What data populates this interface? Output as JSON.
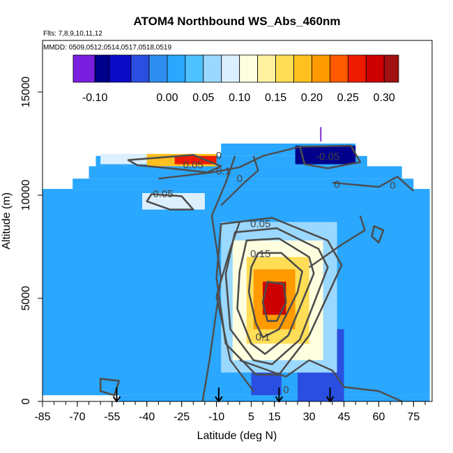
{
  "chart_data": {
    "type": "heatmap",
    "title": "ATOM4 Northbound WS_Abs_460nm",
    "subtitle_flights": "Flts: 7,8,9,10,11,12",
    "subtitle_dates": "MMDD: 0509,0512,0514,0517,0518,0519",
    "xlabel": "Latitude (deg N)",
    "ylabel": "Altitude (m)",
    "xlim": [
      -85,
      83
    ],
    "ylim": [
      0,
      17500
    ],
    "x_ticks": [
      -85,
      -70,
      -55,
      -40,
      -25,
      -10,
      5,
      15,
      30,
      45,
      60,
      75
    ],
    "x_tick_labels": [
      "-85",
      "-70",
      "-55",
      "-40",
      "-25",
      "-10",
      "5",
      "15",
      "30",
      "45",
      "60",
      "75"
    ],
    "x_minor_step": 5,
    "y_ticks": [
      0,
      5000,
      10000,
      15000
    ],
    "y_tick_labels": [
      "0",
      "5000",
      "10000",
      "15000"
    ],
    "colorbar": {
      "min": -0.13,
      "max": 0.32,
      "ticks": [
        -0.1,
        0.0,
        0.05,
        0.1,
        0.15,
        0.2,
        0.25,
        0.3
      ],
      "tick_labels": [
        "-0.10",
        "0.00",
        "0.05",
        "0.10",
        "0.15",
        "0.20",
        "0.25",
        "0.30"
      ],
      "boundaries": [
        -0.13,
        -0.1,
        -0.08,
        -0.05,
        -0.025,
        0.0,
        0.025,
        0.05,
        0.075,
        0.1,
        0.125,
        0.15,
        0.175,
        0.2,
        0.225,
        0.25,
        0.275,
        0.3,
        0.32
      ],
      "colors": [
        "#7a1fe0",
        "#00008a",
        "#0b0bc8",
        "#2a4fe0",
        "#2f8ef0",
        "#2aa7ff",
        "#4ec2ff",
        "#9bd8ff",
        "#dcefff",
        "#ffffe0",
        "#fff1a0",
        "#ffdd55",
        "#ffc020",
        "#ff9a00",
        "#ff5a00",
        "#ee1a00",
        "#cc0000",
        "#a01010"
      ]
    },
    "contour_labels": [
      {
        "text": "0.05",
        "lat": -20,
        "alt": 11300
      },
      {
        "text": "0.1",
        "lat": -7,
        "alt": 11000
      },
      {
        "text": "0",
        "lat": -9,
        "alt": 11750
      },
      {
        "text": "0",
        "lat": 0,
        "alt": 10650
      },
      {
        "text": "-0.05",
        "lat": 38,
        "alt": 11700
      },
      {
        "text": "0",
        "lat": 42,
        "alt": 10350
      },
      {
        "text": "0",
        "lat": 66,
        "alt": 10300
      },
      {
        "text": "0.05",
        "lat": -33,
        "alt": 9900
      },
      {
        "text": "0.05",
        "lat": 9,
        "alt": 8450
      },
      {
        "text": "0.15",
        "lat": 9,
        "alt": 7000
      },
      {
        "text": "0.1",
        "lat": 10,
        "alt": 2950
      },
      {
        "text": "0",
        "lat": 20,
        "alt": 400
      }
    ],
    "profile_latitudes": [
      -53,
      -9,
      17,
      39
    ],
    "marker_latitude": 35,
    "data_regions": [
      {
        "lat0": -85,
        "lat1": 82,
        "alt0": 300,
        "alt1": 10300,
        "value": 0.005
      },
      {
        "lat0": -72,
        "lat1": 75,
        "alt0": 10300,
        "alt1": 10800,
        "value": 0.005
      },
      {
        "lat0": -65,
        "lat1": 70,
        "alt0": 10800,
        "alt1": 11400,
        "value": 0.005
      },
      {
        "lat0": -62,
        "lat1": 55,
        "alt0": 11400,
        "alt1": 11900,
        "value": 0.005
      },
      {
        "lat0": -8,
        "lat1": 50,
        "alt0": 11900,
        "alt1": 12500,
        "value": 0.0
      },
      {
        "lat0": -52,
        "lat1": 82,
        "alt0": 0,
        "alt1": 300,
        "value": 0.005
      },
      {
        "lat0": 24,
        "lat1": 50,
        "alt0": 11500,
        "alt1": 12400,
        "value": -0.1
      },
      {
        "lat0": 25,
        "lat1": 45,
        "alt0": 0,
        "alt1": 3500,
        "value": -0.03
      },
      {
        "lat0": 5,
        "lat1": 18,
        "alt0": 300,
        "alt1": 1500,
        "value": -0.05
      },
      {
        "lat0": -60,
        "lat1": -40,
        "alt0": 11500,
        "alt1": 12000,
        "value": 0.08
      },
      {
        "lat0": -40,
        "lat1": -10,
        "alt0": 11400,
        "alt1": 12000,
        "value": 0.18
      },
      {
        "lat0": -28,
        "lat1": -10,
        "alt0": 11500,
        "alt1": 11900,
        "value": 0.27
      },
      {
        "lat0": -42,
        "lat1": -15,
        "alt0": 9300,
        "alt1": 10100,
        "value": 0.075
      },
      {
        "lat0": -8,
        "lat1": 42,
        "alt0": 1400,
        "alt1": 8700,
        "value": 0.07
      },
      {
        "lat0": -3,
        "lat1": 36,
        "alt0": 2000,
        "alt1": 7800,
        "value": 0.12
      },
      {
        "lat0": 3,
        "lat1": 30,
        "alt0": 2800,
        "alt1": 7000,
        "value": 0.17
      },
      {
        "lat0": 6,
        "lat1": 24,
        "alt0": 3500,
        "alt1": 6400,
        "value": 0.22
      },
      {
        "lat0": 10,
        "lat1": 20,
        "alt0": 4200,
        "alt1": 5800,
        "value": 0.28
      }
    ]
  }
}
